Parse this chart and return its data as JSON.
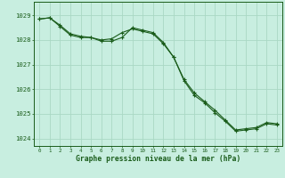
{
  "line1_x": [
    0,
    1,
    2,
    3,
    4,
    5,
    6,
    7,
    8,
    9,
    10,
    11,
    12,
    13,
    14,
    15,
    16,
    17,
    18,
    19,
    20,
    21,
    22,
    23
  ],
  "line1_y": [
    1028.85,
    1028.9,
    1028.55,
    1028.2,
    1028.1,
    1028.1,
    1028.0,
    1028.05,
    1028.3,
    1028.45,
    1028.35,
    1028.25,
    1027.85,
    1027.3,
    1026.35,
    1025.75,
    1025.45,
    1025.05,
    1024.7,
    1024.3,
    1024.35,
    1024.4,
    1024.6,
    1024.55
  ],
  "line2_x": [
    0,
    1,
    2,
    3,
    4,
    5,
    6,
    7,
    8,
    9,
    10,
    11,
    12,
    13,
    14,
    15,
    16,
    17,
    18,
    19,
    20,
    21,
    22,
    23
  ],
  "line2_y": [
    1028.85,
    1028.9,
    1028.6,
    1028.25,
    1028.15,
    1028.1,
    1027.95,
    1027.95,
    1028.1,
    1028.5,
    1028.4,
    1028.3,
    1027.9,
    1027.3,
    1026.4,
    1025.85,
    1025.5,
    1025.15,
    1024.75,
    1024.35,
    1024.4,
    1024.45,
    1024.65,
    1024.6
  ],
  "line_color": "#1a5c1a",
  "bg_color": "#c8eee0",
  "grid_color": "#aad8c4",
  "xlabel": "Graphe pression niveau de la mer (hPa)",
  "xlim_min": -0.5,
  "xlim_max": 23.5,
  "ylim_min": 1023.7,
  "ylim_max": 1029.55,
  "yticks": [
    1024,
    1025,
    1026,
    1027,
    1028,
    1029
  ],
  "xticks": [
    0,
    1,
    2,
    3,
    4,
    5,
    6,
    7,
    8,
    9,
    10,
    11,
    12,
    13,
    14,
    15,
    16,
    17,
    18,
    19,
    20,
    21,
    22,
    23
  ]
}
